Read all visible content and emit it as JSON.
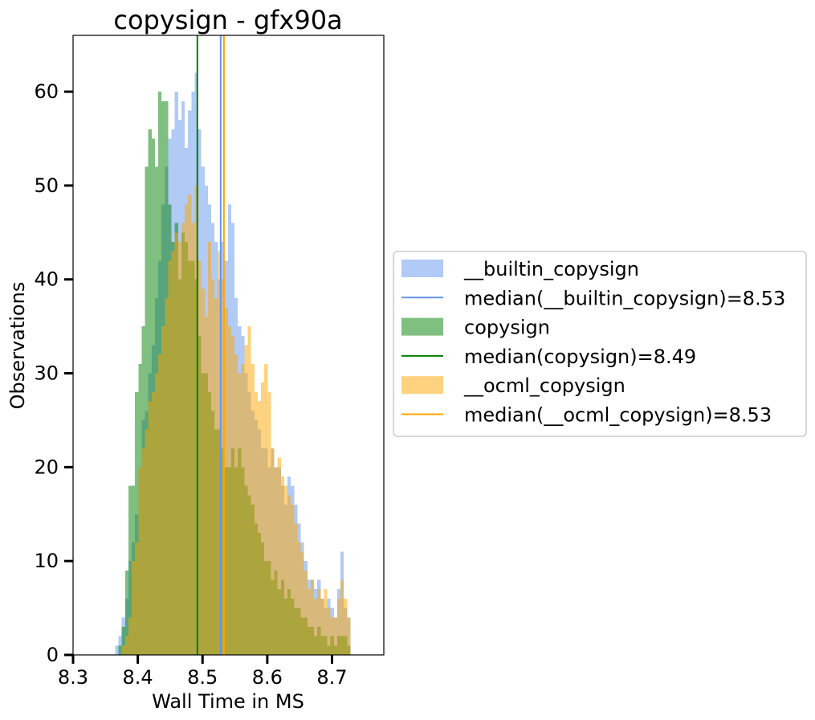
{
  "chart_data": {
    "type": "histogram",
    "title": "copysign - gfx90a",
    "xlabel": "Wall Time in MS",
    "ylabel": "Observations",
    "xlim": [
      8.3,
      8.78
    ],
    "ylim": [
      0,
      66
    ],
    "xticks": [
      8.3,
      8.4,
      8.5,
      8.6,
      8.7
    ],
    "yticks": [
      0,
      10,
      20,
      30,
      40,
      50,
      60
    ],
    "grid": false,
    "legend_position": "right, outside",
    "bin_start": 8.365,
    "bin_width": 0.00512,
    "series": [
      {
        "name": "__builtin_copysign",
        "color": "#6495ED",
        "alpha": 0.5,
        "counts": [
          1,
          2,
          4,
          6,
          10,
          12,
          15,
          20,
          25,
          26,
          30,
          33,
          38,
          42,
          48,
          52,
          55,
          56,
          60,
          57,
          59,
          54,
          58,
          60,
          62,
          56,
          52,
          50,
          48,
          46,
          44,
          40,
          44,
          42,
          48,
          46,
          38,
          35,
          34,
          30,
          28,
          26,
          25,
          24,
          22,
          22,
          20,
          22,
          20,
          20,
          18,
          16,
          19,
          18,
          16,
          14,
          12,
          10,
          8,
          8,
          7,
          8,
          6,
          5,
          6,
          5,
          4,
          7,
          11,
          5,
          4
        ]
      },
      {
        "name": "copysign",
        "color": "#008000",
        "alpha": 0.5,
        "counts": [
          0,
          1,
          3,
          9,
          18,
          18,
          28,
          31,
          35,
          52,
          56,
          55,
          52,
          60,
          59,
          59,
          48,
          44,
          46,
          40,
          45,
          44,
          42,
          42,
          40,
          34,
          30,
          30,
          28,
          26,
          24,
          24,
          22,
          20,
          20,
          22,
          20,
          22,
          20,
          18,
          17,
          16,
          14,
          13,
          12,
          10,
          10,
          8,
          9,
          7,
          8,
          6,
          7,
          6,
          5,
          5,
          4,
          4,
          3,
          3,
          2,
          3,
          2,
          2,
          1,
          2,
          1,
          2,
          2,
          2,
          1
        ]
      },
      {
        "name": "__ocml_copysign",
        "color": "#FFA500",
        "alpha": 0.5,
        "counts": [
          0,
          0,
          1,
          2,
          4,
          10,
          12,
          20,
          22,
          24,
          27,
          28,
          30,
          32,
          35,
          38,
          42,
          43,
          45,
          44,
          46,
          48,
          49,
          46,
          50,
          42,
          39,
          36,
          44,
          40,
          38,
          43,
          40,
          37,
          35,
          34,
          32,
          30,
          31,
          33,
          35,
          31,
          28,
          27,
          29,
          31,
          28,
          22,
          20,
          21,
          19,
          18,
          17,
          16,
          14,
          12,
          11,
          9,
          7,
          8,
          6,
          7,
          6,
          7,
          5,
          4,
          4,
          6,
          8,
          6,
          4
        ]
      }
    ],
    "medians": [
      {
        "label": "median(__builtin_copysign)=8.53",
        "value": 8.528,
        "color": "#6495ED"
      },
      {
        "label": "median(copysign)=8.49",
        "value": 8.492,
        "color": "#008000"
      },
      {
        "label": "median(__ocml_copysign)=8.53",
        "value": 8.533,
        "color": "#FFA500"
      }
    ],
    "legend": [
      {
        "kind": "patch",
        "label": "__builtin_copysign",
        "color": "#6495ED"
      },
      {
        "kind": "line",
        "label": "median(__builtin_copysign)=8.53",
        "color": "#6495ED"
      },
      {
        "kind": "patch",
        "label": "copysign",
        "color": "#008000"
      },
      {
        "kind": "line",
        "label": "median(copysign)=8.49",
        "color": "#008000"
      },
      {
        "kind": "patch",
        "label": "__ocml_copysign",
        "color": "#FFA500"
      },
      {
        "kind": "line",
        "label": "median(__ocml_copysign)=8.53",
        "color": "#FFA500"
      }
    ]
  }
}
